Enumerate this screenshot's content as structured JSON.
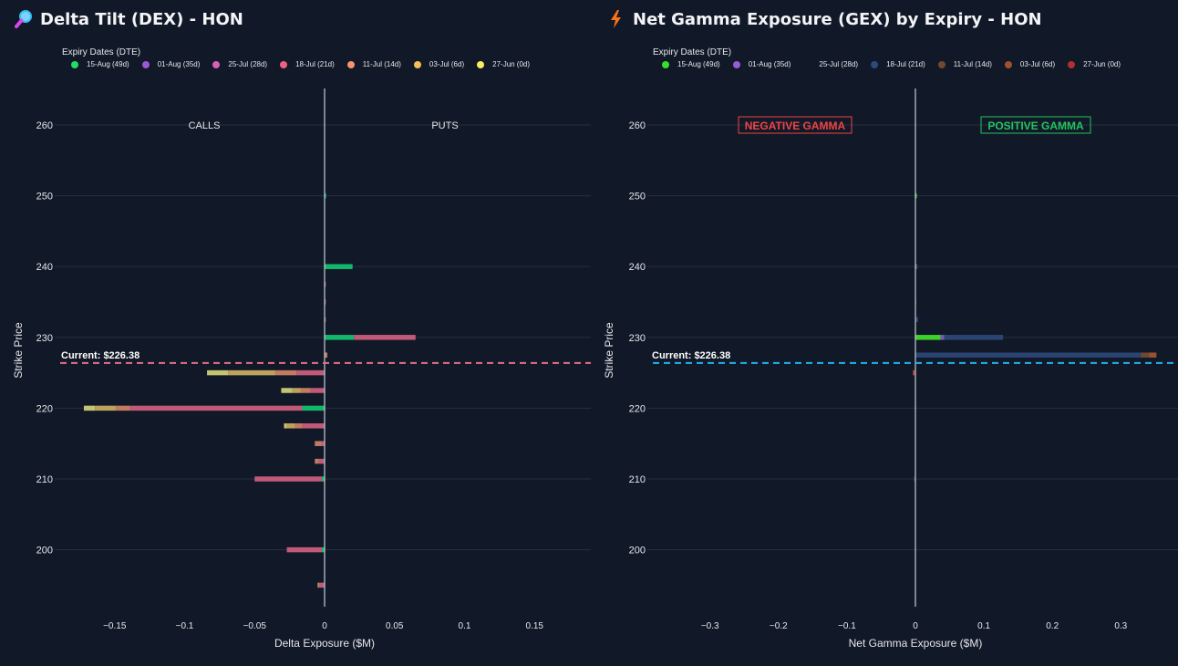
{
  "panels": {
    "dex": {
      "title": "Delta Tilt (DEX) - HON",
      "icon": "magnifying-glass-icon",
      "legend_title": "Expiry Dates (DTE)",
      "ylabel": "Strike Price",
      "xlabel": "Delta Exposure ($M)",
      "current_label": "Current: $226.38",
      "annotations": {
        "left": "CALLS",
        "right": "PUTS"
      }
    },
    "gex": {
      "title": "Net Gamma Exposure (GEX) by Expiry - HON",
      "icon": "lightning-icon",
      "legend_title": "Expiry Dates (DTE)",
      "ylabel": "Strike Price",
      "xlabel": "Net Gamma Exposure ($M)",
      "current_label": "Current: $226.38",
      "annotations": {
        "left": "NEGATIVE GAMMA",
        "right": "POSITIVE GAMMA"
      }
    }
  },
  "chart_data": [
    {
      "type": "bar",
      "orientation": "horizontal",
      "barmode": "stack",
      "title": "Delta Tilt (DEX) - HON",
      "xlabel": "Delta Exposure ($M)",
      "ylabel": "Strike Price",
      "xlim": [
        -0.19,
        0.19
      ],
      "ylim": [
        192,
        265
      ],
      "xticks": [
        -0.15,
        -0.1,
        -0.05,
        0,
        0.05,
        0.1,
        0.15
      ],
      "xtick_labels": [
        "−0.15",
        "−0.1",
        "−0.05",
        "0",
        "0.05",
        "0.1",
        "0.15"
      ],
      "yticks": [
        200,
        210,
        220,
        230,
        240,
        250,
        260
      ],
      "current_price": 226.38,
      "current_line_color": "#e8708c",
      "legend_position": "top",
      "strikes": [
        195,
        200,
        210,
        212.5,
        215,
        217.5,
        220,
        222.5,
        225,
        227.5,
        230,
        232.5,
        235,
        237.5,
        240,
        250
      ],
      "series": [
        {
          "name": "15-Aug (49d)",
          "color": "#22dd66",
          "bar_color": "#12b76a",
          "values": [
            0,
            -0.002,
            -0.002,
            0,
            0,
            0,
            -0.016,
            0,
            0,
            0,
            0.021,
            0,
            0,
            0,
            0.02,
            0.001
          ]
        },
        {
          "name": "01-Aug (35d)",
          "color": "#9b59d6",
          "bar_color": "#9b59d6",
          "values": [
            0,
            0,
            0,
            0,
            0,
            0,
            0,
            0,
            0,
            0,
            0,
            0,
            0,
            0,
            0,
            0
          ]
        },
        {
          "name": "25-Jul (28d)",
          "color": "#d860b8",
          "bar_color": "#c75090",
          "values": [
            0,
            0,
            0,
            0,
            0,
            0,
            0,
            0,
            0,
            0,
            0,
            0,
            0,
            0,
            0,
            0
          ]
        },
        {
          "name": "18-Jul (21d)",
          "color": "#f06080",
          "bar_color": "#c05a78",
          "values": [
            -0.004,
            -0.025,
            -0.048,
            -0.004,
            -0.002,
            -0.016,
            -0.123,
            -0.01,
            -0.02,
            0,
            0.044,
            0.0008,
            0.0008,
            0.0008,
            0,
            0
          ]
        },
        {
          "name": "11-Jul (14d)",
          "color": "#f59470",
          "bar_color": "#c27a63",
          "values": [
            0,
            0,
            0,
            -0.003,
            -0.005,
            -0.005,
            -0.01,
            -0.007,
            -0.015,
            0.002,
            0,
            0,
            0,
            0,
            0,
            0
          ]
        },
        {
          "name": "03-Jul (6d)",
          "color": "#f2c056",
          "bar_color": "#bfa15e",
          "values": [
            -0.001,
            0,
            0,
            0,
            0,
            -0.006,
            -0.015,
            -0.006,
            -0.034,
            0,
            0,
            0,
            0,
            0,
            0,
            0
          ]
        },
        {
          "name": "27-Jun (0d)",
          "color": "#f7ef5c",
          "bar_color": "#c2c472",
          "values": [
            0,
            0,
            0,
            0,
            0,
            -0.002,
            -0.008,
            -0.008,
            -0.015,
            0,
            0,
            0,
            0,
            0,
            0,
            0
          ]
        }
      ]
    },
    {
      "type": "bar",
      "orientation": "horizontal",
      "barmode": "stack",
      "title": "Net Gamma Exposure (GEX) by Expiry - HON",
      "xlabel": "Net Gamma Exposure ($M)",
      "ylabel": "Strike Price",
      "xlim": [
        -0.39,
        0.39
      ],
      "ylim": [
        192,
        265
      ],
      "xticks": [
        -0.3,
        -0.2,
        -0.1,
        0,
        0.1,
        0.2,
        0.3
      ],
      "xtick_labels": [
        "−0.3",
        "−0.2",
        "−0.1",
        "0",
        "0.1",
        "0.2",
        "0.3"
      ],
      "yticks": [
        200,
        210,
        220,
        230,
        240,
        250,
        260
      ],
      "current_price": 226.38,
      "current_line_color": "#1fb6f0",
      "legend_position": "top",
      "strikes": [
        195,
        200,
        210,
        212.5,
        215,
        217.5,
        220,
        222.5,
        225,
        227.5,
        230,
        232.5,
        235,
        237.5,
        240,
        250
      ],
      "series": [
        {
          "name": "15-Aug (49d)",
          "color": "#35e02c",
          "bar_color": "#3fd02a",
          "values": [
            0,
            0,
            -0.001,
            0,
            0,
            0,
            0,
            0,
            0,
            0,
            0.037,
            0,
            0,
            0,
            0.001,
            0.002
          ]
        },
        {
          "name": "01-Aug (35d)",
          "color": "#9b59d6",
          "bar_color": "#7e55b8",
          "values": [
            0,
            0,
            0,
            0,
            0,
            0,
            0,
            0,
            0,
            0,
            0.005,
            0,
            0,
            0,
            0,
            0
          ]
        },
        {
          "name": "25-Jul (28d)",
          "color": "#111827",
          "bar_color": "#1e3050",
          "values": [
            0,
            0,
            0,
            0,
            0,
            0,
            0,
            0,
            0,
            0,
            0,
            0,
            0,
            0,
            0,
            0
          ]
        },
        {
          "name": "18-Jul (21d)",
          "color": "#2d4a7a",
          "bar_color": "#2b4573",
          "values": [
            0,
            0,
            -0.001,
            0,
            0,
            0,
            -0.001,
            0,
            -0.001,
            0.329,
            0.086,
            0.004,
            0.001,
            0,
            0.002,
            0
          ]
        },
        {
          "name": "11-Jul (14d)",
          "color": "#6e4a2e",
          "bar_color": "#6a4a30",
          "values": [
            0,
            0,
            0,
            0,
            0,
            0,
            0,
            0,
            0,
            0.012,
            0,
            0,
            0,
            0,
            0,
            0
          ]
        },
        {
          "name": "03-Jul (6d)",
          "color": "#a0522d",
          "bar_color": "#9a5230",
          "values": [
            0,
            0,
            0,
            0,
            0,
            0,
            0,
            0,
            -0.002,
            0.011,
            0,
            0,
            0,
            0,
            0,
            0
          ]
        },
        {
          "name": "27-Jun (0d)",
          "color": "#b03030",
          "bar_color": "#a83232",
          "values": [
            0,
            0,
            0,
            0,
            0,
            0,
            0,
            0,
            -0.001,
            0,
            0,
            0,
            0,
            0,
            0,
            0
          ]
        }
      ]
    }
  ]
}
